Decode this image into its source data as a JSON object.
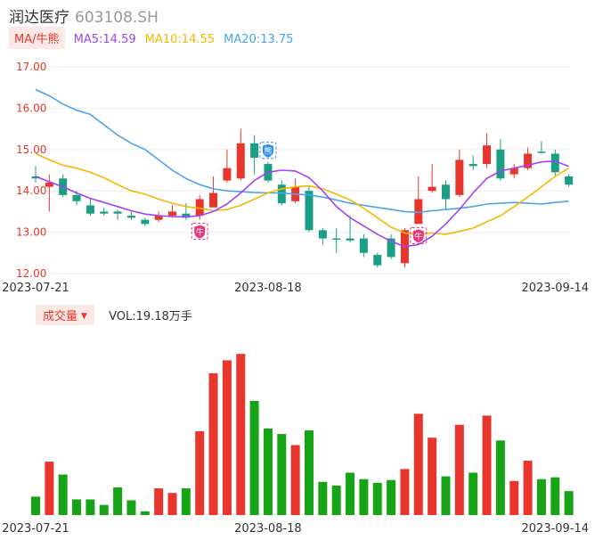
{
  "header": {
    "name": "润达医疗",
    "code": "603108.SH"
  },
  "ma_legend": {
    "tag": "MA/牛熊",
    "items": [
      {
        "label": "MA5:14.59",
        "color": "#a142f4"
      },
      {
        "label": "MA10:14.55",
        "color": "#f5b800"
      },
      {
        "label": "MA20:13.75",
        "color": "#4aa3f0"
      }
    ]
  },
  "volume_legend": {
    "tag": "成交量",
    "text": "VOL:19.18万手"
  },
  "colors": {
    "up": "#e8362d",
    "down": "#1a9f85",
    "vol_down": "#16a416",
    "grid": "#eeeeee",
    "axis_label": "#e8362d",
    "badge_bull": "#e8367d",
    "badge_bear": "#2f8cf0"
  },
  "chart_data": {
    "type": "candlestick",
    "y_ticks": [
      "17.00",
      "16.00",
      "15.00",
      "14.00",
      "13.00",
      "12.00"
    ],
    "ylim": [
      12.0,
      17.0
    ],
    "x_tick_labels": [
      {
        "index": 0,
        "label": "2023-07-21"
      },
      {
        "index": 17,
        "label": "2023-08-18"
      },
      {
        "index": 38,
        "label": "2023-09-14"
      }
    ],
    "candles": [
      {
        "o": 14.35,
        "c": 14.3,
        "h": 14.6,
        "l": 14.2
      },
      {
        "o": 14.1,
        "c": 14.2,
        "h": 14.4,
        "l": 13.5
      },
      {
        "o": 14.3,
        "c": 13.9,
        "h": 14.4,
        "l": 13.85
      },
      {
        "o": 13.9,
        "c": 13.75,
        "h": 14.0,
        "l": 13.65
      },
      {
        "o": 13.65,
        "c": 13.45,
        "h": 13.8,
        "l": 13.4
      },
      {
        "o": 13.5,
        "c": 13.45,
        "h": 13.6,
        "l": 13.4
      },
      {
        "o": 13.5,
        "c": 13.45,
        "h": 13.55,
        "l": 13.3
      },
      {
        "o": 13.4,
        "c": 13.35,
        "h": 13.5,
        "l": 13.3
      },
      {
        "o": 13.3,
        "c": 13.2,
        "h": 13.35,
        "l": 13.15
      },
      {
        "o": 13.3,
        "c": 13.4,
        "h": 13.5,
        "l": 13.25
      },
      {
        "o": 13.4,
        "c": 13.5,
        "h": 13.65,
        "l": 13.35
      },
      {
        "o": 13.45,
        "c": 13.35,
        "h": 13.7,
        "l": 13.3
      },
      {
        "o": 13.4,
        "c": 13.8,
        "h": 13.9,
        "l": 13.3
      },
      {
        "o": 13.6,
        "c": 13.95,
        "h": 14.35,
        "l": 13.6
      },
      {
        "o": 14.25,
        "c": 14.55,
        "h": 15.0,
        "l": 14.2
      },
      {
        "o": 14.3,
        "c": 15.15,
        "h": 15.5,
        "l": 14.25
      },
      {
        "o": 15.15,
        "c": 14.8,
        "h": 15.35,
        "l": 14.4
      },
      {
        "o": 14.65,
        "c": 14.25,
        "h": 14.7,
        "l": 14.2
      },
      {
        "o": 14.15,
        "c": 13.7,
        "h": 14.25,
        "l": 13.65
      },
      {
        "o": 13.75,
        "c": 14.1,
        "h": 14.3,
        "l": 13.7
      },
      {
        "o": 14.0,
        "c": 13.05,
        "h": 14.1,
        "l": 13.0
      },
      {
        "o": 13.05,
        "c": 12.85,
        "h": 13.1,
        "l": 12.7
      },
      {
        "o": 12.85,
        "c": 12.82,
        "h": 13.1,
        "l": 12.5
      },
      {
        "o": 12.85,
        "c": 12.8,
        "h": 13.4,
        "l": 12.75
      },
      {
        "o": 12.85,
        "c": 12.5,
        "h": 12.95,
        "l": 12.4
      },
      {
        "o": 12.45,
        "c": 12.2,
        "h": 12.5,
        "l": 12.15
      },
      {
        "o": 12.85,
        "c": 12.4,
        "h": 12.95,
        "l": 12.35
      },
      {
        "o": 12.25,
        "c": 13.05,
        "h": 13.1,
        "l": 12.15
      },
      {
        "o": 13.2,
        "c": 13.8,
        "h": 14.35,
        "l": 13.2
      },
      {
        "o": 14.0,
        "c": 14.1,
        "h": 14.65,
        "l": 13.95
      },
      {
        "o": 14.15,
        "c": 13.8,
        "h": 14.25,
        "l": 13.55
      },
      {
        "o": 13.9,
        "c": 14.75,
        "h": 15.0,
        "l": 13.85
      },
      {
        "o": 14.65,
        "c": 14.6,
        "h": 14.85,
        "l": 14.5
      },
      {
        "o": 14.65,
        "c": 15.1,
        "h": 15.4,
        "l": 14.55
      },
      {
        "o": 15.0,
        "c": 14.3,
        "h": 15.25,
        "l": 14.25
      },
      {
        "o": 14.4,
        "c": 14.55,
        "h": 14.65,
        "l": 14.3
      },
      {
        "o": 14.55,
        "c": 14.9,
        "h": 15.05,
        "l": 14.5
      },
      {
        "o": 14.95,
        "c": 14.92,
        "h": 15.2,
        "l": 14.9
      },
      {
        "o": 14.9,
        "c": 14.45,
        "h": 15.0,
        "l": 14.35
      },
      {
        "o": 14.35,
        "c": 14.15,
        "h": 14.4,
        "l": 14.1
      }
    ],
    "ma5": [
      14.35,
      14.22,
      14.1,
      13.95,
      13.82,
      13.72,
      13.62,
      13.52,
      13.44,
      13.4,
      13.38,
      13.37,
      13.4,
      13.5,
      13.68,
      13.95,
      14.25,
      14.45,
      14.5,
      14.48,
      14.32,
      14.0,
      13.62,
      13.35,
      13.15,
      12.95,
      12.78,
      12.65,
      12.7,
      12.9,
      13.2,
      13.55,
      13.95,
      14.3,
      14.48,
      14.55,
      14.62,
      14.7,
      14.72,
      14.59
    ],
    "ma10": [
      14.9,
      14.75,
      14.62,
      14.55,
      14.45,
      14.32,
      14.15,
      14.0,
      13.92,
      13.8,
      13.7,
      13.62,
      13.58,
      13.52,
      13.55,
      13.65,
      13.8,
      13.95,
      14.05,
      14.1,
      14.12,
      14.05,
      13.92,
      13.78,
      13.58,
      13.35,
      13.12,
      12.98,
      12.95,
      12.98,
      12.95,
      13.02,
      13.1,
      13.25,
      13.4,
      13.62,
      13.85,
      14.1,
      14.35,
      14.55
    ],
    "ma20": [
      16.45,
      16.3,
      16.1,
      15.95,
      15.85,
      15.6,
      15.35,
      15.15,
      15.0,
      14.75,
      14.5,
      14.3,
      14.15,
      14.05,
      14.0,
      13.98,
      13.96,
      13.95,
      13.95,
      13.92,
      13.9,
      13.85,
      13.78,
      13.7,
      13.65,
      13.6,
      13.55,
      13.5,
      13.48,
      13.52,
      13.55,
      13.58,
      13.62,
      13.68,
      13.7,
      13.72,
      13.7,
      13.68,
      13.72,
      13.75
    ],
    "badges": [
      {
        "index": 12,
        "text": "牛",
        "position": "below",
        "kind": "bull"
      },
      {
        "index": 17,
        "text": "熊",
        "position": "above",
        "kind": "bear"
      },
      {
        "index": 28,
        "text": "牛",
        "position": "below",
        "kind": "bull"
      }
    ],
    "volume": [
      20,
      58,
      44,
      17,
      17,
      11,
      30,
      16,
      4,
      29,
      24,
      29,
      91,
      154,
      168,
      175,
      124,
      94,
      88,
      76,
      92,
      36,
      32,
      46,
      39,
      35,
      38,
      50,
      110,
      84,
      42,
      98,
      46,
      108,
      81,
      37,
      59,
      39,
      41,
      26
    ],
    "vol_ylim": [
      0,
      180
    ]
  }
}
